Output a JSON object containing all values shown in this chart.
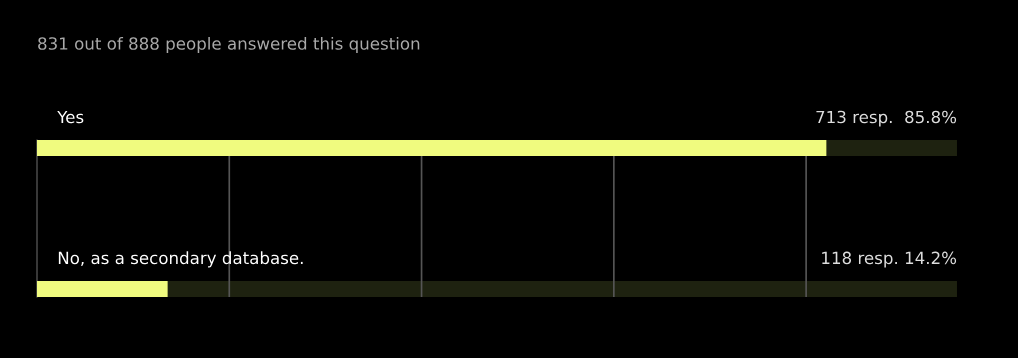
{
  "chart_data": {
    "type": "bar",
    "orientation": "horizontal",
    "title": "831 out of 888 people answered this question",
    "categories": [
      "Yes",
      "No, as a secondary database."
    ],
    "values": [
      85.8,
      14.2
    ],
    "color": "#f0fb7f",
    "value_labels": [
      "713 resp.  85.8%",
      "118 resp. 14.2%"
    ],
    "xlim": [
      0,
      100
    ]
  }
}
